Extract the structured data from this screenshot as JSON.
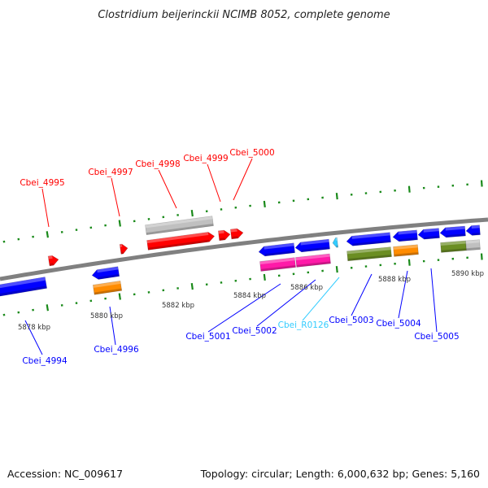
{
  "title": "Clostridium beijerinckii NCIMB 8052, complete genome",
  "footer": {
    "accession": "Accession: NC_009617",
    "summary": "Topology: circular; Length: 6,000,632 bp; Genes: 5,160"
  },
  "colors": {
    "forward_gene": "#ff0000",
    "reverse_gene": "#0000ff",
    "rna": "#33ccff",
    "backbone": "#808080",
    "ticks": "#1a8a1a",
    "pseudo": "#c0c0c0",
    "cog_orange": "#ff8c00",
    "cog_magenta": "#ff1aa8",
    "cog_green": "#6b8e23"
  },
  "kbp_labels": [
    "5878 kbp",
    "5880 kbp",
    "5882 kbp",
    "5884 kbp",
    "5886 kbp",
    "5888 kbp",
    "5890 kbp"
  ],
  "top_labels": [
    "Cbei_4995",
    "Cbei_4997",
    "Cbei_4998",
    "Cbei_4999",
    "Cbei_5000"
  ],
  "bottom_labels": [
    "Cbei_4994",
    "Cbei_4996",
    "Cbei_5001",
    "Cbei_5002",
    "Cbei_R0126",
    "Cbei_5003",
    "Cbei_5004",
    "Cbei_5005"
  ]
}
